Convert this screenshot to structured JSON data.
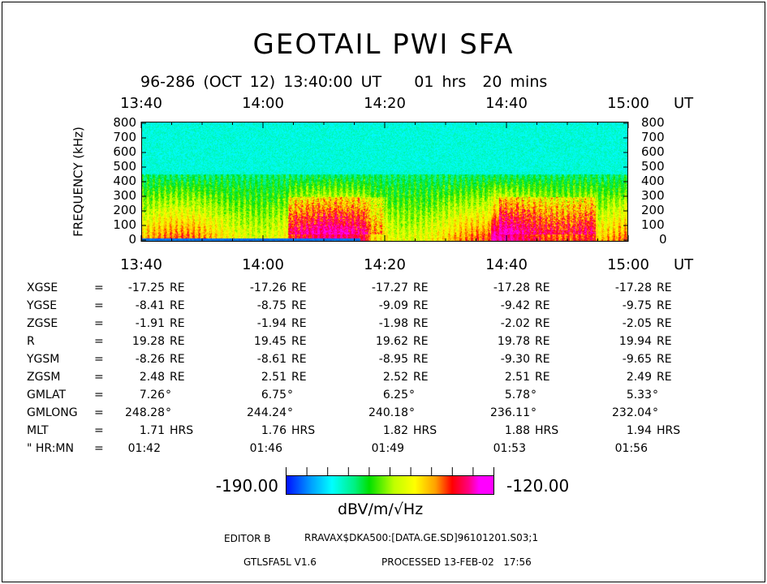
{
  "title": "GEOTAIL PWI SFA",
  "subtitle": "96-286 (OCT 12) 13:40:00 UT    01 hrs  20 mins",
  "chart_data": {
    "type": "heatmap",
    "title": "GEOTAIL PWI SFA",
    "x_ticks": [
      "13:40",
      "14:00",
      "14:20",
      "14:40",
      "15:00"
    ],
    "x_unit": "UT",
    "ylabel": "FREQUENCY (kHz)",
    "y_ticks": [
      "0",
      "100",
      "200",
      "300",
      "400",
      "500",
      "600",
      "700",
      "800"
    ],
    "ylim": [
      0,
      800
    ],
    "xlim_minutes": [
      0,
      80
    ],
    "colorbar": {
      "min": "-190.00",
      "max": "-120.00",
      "unit": "dBV/m/√Hz"
    }
  },
  "ephemeris": {
    "rows": [
      {
        "label": "XGSE",
        "values": [
          "-17.25",
          "-17.26",
          "-17.27",
          "-17.28",
          "-17.28"
        ],
        "unit": "RE"
      },
      {
        "label": "YGSE",
        "values": [
          "-8.41",
          "-8.75",
          "-9.09",
          "-9.42",
          "-9.75"
        ],
        "unit": "RE"
      },
      {
        "label": "ZGSE",
        "values": [
          "-1.91",
          "-1.94",
          "-1.98",
          "-2.02",
          "-2.05"
        ],
        "unit": "RE"
      },
      {
        "label": "R",
        "values": [
          "19.28",
          "19.45",
          "19.62",
          "19.78",
          "19.94"
        ],
        "unit": "RE"
      },
      {
        "label": "YGSM",
        "values": [
          "-8.26",
          "-8.61",
          "-8.95",
          "-9.30",
          "-9.65"
        ],
        "unit": "RE"
      },
      {
        "label": "ZGSM",
        "values": [
          "2.48",
          "2.51",
          "2.52",
          "2.51",
          "2.49"
        ],
        "unit": "RE"
      },
      {
        "label": "GMLAT",
        "values": [
          "7.26",
          "6.75",
          "6.25",
          "5.78",
          "5.33"
        ],
        "unit": "°"
      },
      {
        "label": "GMLONG",
        "values": [
          "248.28",
          "244.24",
          "240.18",
          "236.11",
          "232.04"
        ],
        "unit": "°"
      },
      {
        "label": "MLT",
        "values": [
          "1.71",
          "1.76",
          "1.82",
          "1.88",
          "1.94"
        ],
        "unit": "HRS"
      },
      {
        "label": "\" HR:MN",
        "values": [
          "01:42",
          "01:46",
          "01:49",
          "01:53",
          "01:56"
        ],
        "unit": ""
      }
    ],
    "equals": "="
  },
  "footer": {
    "editor": "EDITOR B",
    "file": "RRAVAX$DKA500:[DATA.GE.SD]96101201.S03;1",
    "program": "GTLSFA5L V1.6",
    "processed": "PROCESSED 13-FEB-02   17:56"
  }
}
